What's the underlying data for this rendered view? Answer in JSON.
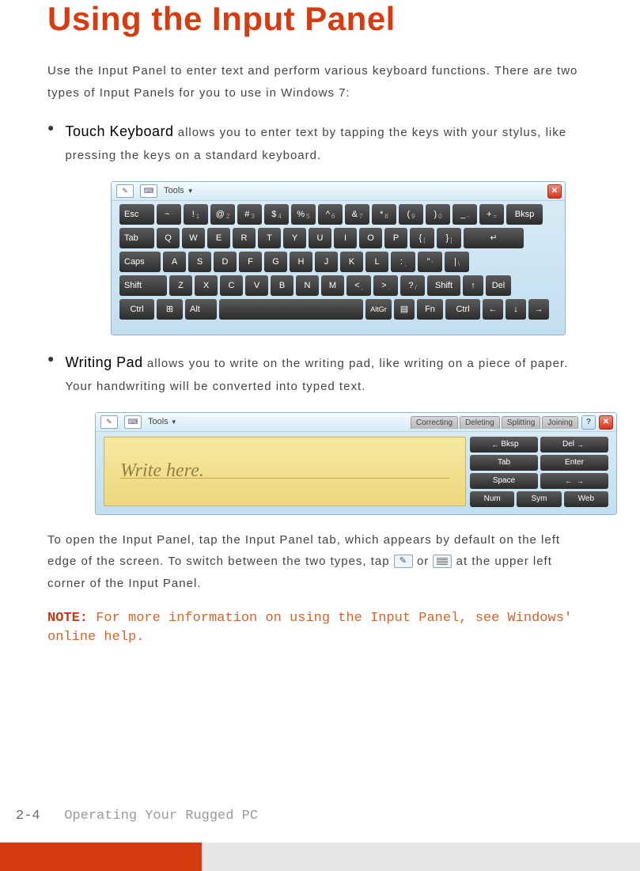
{
  "heading": "Using the Input Panel",
  "intro": "Use the Input Panel to enter text and perform various keyboard functions. There are two types of Input Panels for you to use in Windows 7:",
  "bullets": [
    {
      "lead": "Touch Keyboard",
      "text": " allows you to enter text by tapping the keys with your stylus, like pressing the keys on a standard keyboard."
    },
    {
      "lead": "Writing Pad",
      "text": " allows you to write on the writing pad, like writing on a piece of paper. Your handwriting will be converted into typed text."
    }
  ],
  "open_text_pre": "To open the Input Panel, tap the Input Panel tab, which appears by default on the left edge of the screen. To switch between the two types, tap ",
  "open_text_mid": " or ",
  "open_text_post": " at the upper left corner of the Input Panel.",
  "note_label": "NOTE:",
  "note_text": " For more information on using the Input Panel, see Windows' online help.",
  "page_num": "2-4",
  "footer_chapter": "Operating Your Rugged PC",
  "touch_keyboard": {
    "toolbar": {
      "tools_label": "Tools"
    },
    "rows": [
      [
        {
          "k": "Esc",
          "w": "w-esc"
        },
        {
          "k": "~",
          "s": "`",
          "w": "w-sym"
        },
        {
          "k": "!",
          "s": "1",
          "w": "w-sym"
        },
        {
          "k": "@",
          "s": "2",
          "w": "w-sym"
        },
        {
          "k": "#",
          "s": "3",
          "w": "w-sym"
        },
        {
          "k": "$",
          "s": "4",
          "w": "w-sym"
        },
        {
          "k": "%",
          "s": "5",
          "w": "w-sym"
        },
        {
          "k": "^",
          "s": "6",
          "w": "w-sym"
        },
        {
          "k": "&",
          "s": "7",
          "w": "w-sym"
        },
        {
          "k": "*",
          "s": "8",
          "w": "w-sym"
        },
        {
          "k": "(",
          "s": "9",
          "w": "w-sym"
        },
        {
          "k": ")",
          "s": "0",
          "w": "w-sym"
        },
        {
          "k": "_",
          "s": "-",
          "w": "w-sym"
        },
        {
          "k": "+",
          "s": "=",
          "w": "w-sym"
        },
        {
          "k": "Bksp",
          "w": "w-bksp"
        }
      ],
      [
        {
          "k": "Tab",
          "w": "w-tab"
        },
        {
          "k": "Q",
          "w": "w-letter"
        },
        {
          "k": "W",
          "w": "w-letter"
        },
        {
          "k": "E",
          "w": "w-letter"
        },
        {
          "k": "R",
          "w": "w-letter"
        },
        {
          "k": "T",
          "w": "w-letter"
        },
        {
          "k": "Y",
          "w": "w-letter"
        },
        {
          "k": "U",
          "w": "w-letter"
        },
        {
          "k": "I",
          "w": "w-letter"
        },
        {
          "k": "O",
          "w": "w-letter"
        },
        {
          "k": "P",
          "w": "w-letter"
        },
        {
          "k": "{",
          "s": "[",
          "w": "w-sym"
        },
        {
          "k": "}",
          "s": "]",
          "w": "w-sym"
        },
        {
          "k": "↵",
          "w": "w-enter"
        }
      ],
      [
        {
          "k": "Caps",
          "w": "w-caps"
        },
        {
          "k": "A",
          "w": "w-letter"
        },
        {
          "k": "S",
          "w": "w-letter"
        },
        {
          "k": "D",
          "w": "w-letter"
        },
        {
          "k": "F",
          "w": "w-letter"
        },
        {
          "k": "G",
          "w": "w-letter"
        },
        {
          "k": "H",
          "w": "w-letter"
        },
        {
          "k": "J",
          "w": "w-letter"
        },
        {
          "k": "K",
          "w": "w-letter"
        },
        {
          "k": "L",
          "w": "w-letter"
        },
        {
          "k": ":",
          "s": ";",
          "w": "w-sym"
        },
        {
          "k": "\"",
          "s": "'",
          "w": "w-sym"
        },
        {
          "k": "|",
          "s": "\\",
          "w": "w-sym"
        }
      ],
      [
        {
          "k": "Shift",
          "w": "w-shift"
        },
        {
          "k": "Z",
          "w": "w-letter"
        },
        {
          "k": "X",
          "w": "w-letter"
        },
        {
          "k": "C",
          "w": "w-letter"
        },
        {
          "k": "V",
          "w": "w-letter"
        },
        {
          "k": "B",
          "w": "w-letter"
        },
        {
          "k": "N",
          "w": "w-letter"
        },
        {
          "k": "M",
          "w": "w-letter"
        },
        {
          "k": "<",
          "s": ",",
          "w": "w-sym"
        },
        {
          "k": ">",
          "s": ".",
          "w": "w-sym"
        },
        {
          "k": "?",
          "s": "/",
          "w": "w-sym"
        },
        {
          "k": "Shift",
          "w": "w-shift2"
        },
        {
          "k": "↑",
          "w": "w-arrow"
        },
        {
          "k": "Del",
          "w": "w-del"
        }
      ],
      [
        {
          "k": "Ctrl",
          "w": "w-ctrl"
        },
        {
          "k": "⊞",
          "w": "w-win"
        },
        {
          "k": "Alt",
          "w": "w-alt"
        },
        {
          "k": " ",
          "w": "w-space"
        },
        {
          "k": "AltGr",
          "w": "w-altgr"
        },
        {
          "k": "▤",
          "w": "w-menu"
        },
        {
          "k": "Fn",
          "w": "w-fn"
        },
        {
          "k": "Ctrl",
          "w": "w-ctrl"
        },
        {
          "k": "←",
          "w": "w-arrow"
        },
        {
          "k": "↓",
          "w": "w-arrow"
        },
        {
          "k": "→",
          "w": "w-arrow"
        }
      ]
    ]
  },
  "writing_pad": {
    "toolbar": {
      "tools_label": "Tools"
    },
    "tabs": [
      "Correcting",
      "Deleting",
      "Splitting",
      "Joining"
    ],
    "placeholder": "Write here.",
    "side_rows": [
      [
        {
          "l": "←",
          "t": "Bksp"
        },
        {
          "t": "Del",
          "r": "→"
        }
      ],
      [
        {
          "t": "Tab"
        },
        {
          "t": "Enter"
        }
      ],
      [
        {
          "t": "Space"
        },
        {
          "l": "←",
          "r": "→"
        }
      ],
      [
        {
          "t": "Num"
        },
        {
          "t": "Sym"
        },
        {
          "t": "Web"
        }
      ]
    ]
  }
}
